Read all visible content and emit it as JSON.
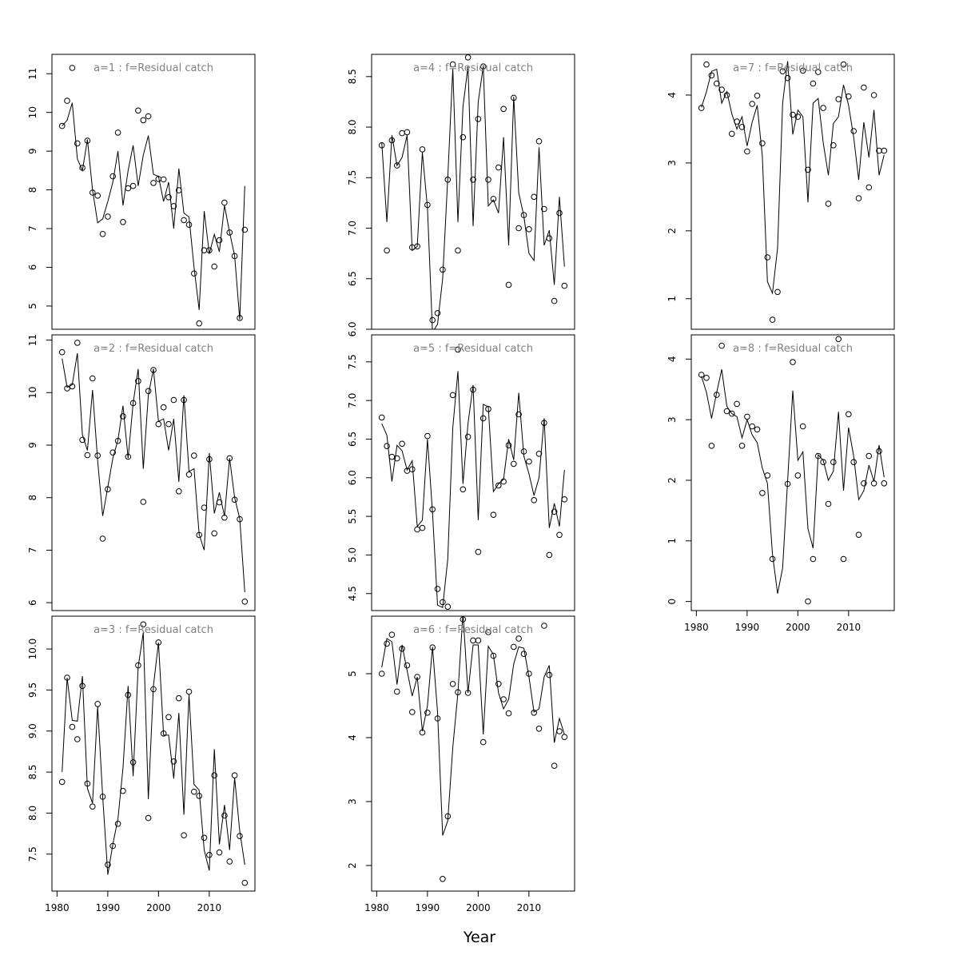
{
  "chart_data": {
    "type": "scatter",
    "title_template": "a={age}  :  f=Residual catch",
    "xlabel": "Year",
    "x_ticks": [
      1980,
      1990,
      2000,
      2010
    ],
    "xlim": [
      1979,
      2019
    ],
    "layout": "3 columns; ages 1-3 in left column, 4-6 in middle column, 7-8 in right column; x-axis tick labels only on bottom panel of each column",
    "series_description": "open circles = observed values; solid line = fitted values",
    "panels": [
      {
        "age": 1,
        "title": "a=1  :  f=Residual catch",
        "ylim": [
          4.4,
          11.5
        ],
        "y_ticks": [
          5,
          6,
          7,
          8,
          9,
          10,
          11
        ],
        "years": [
          1981,
          1982,
          1983,
          1984,
          1985,
          1986,
          1987,
          1988,
          1989,
          1990,
          1991,
          1992,
          1993,
          1994,
          1995,
          1996,
          1997,
          1998,
          1999,
          2000,
          2001,
          2002,
          2003,
          2004,
          2005,
          2006,
          2007,
          2008,
          2009,
          2010,
          2011,
          2012,
          2013,
          2014,
          2015,
          2016,
          2017
        ],
        "observed": [
          9.65,
          10.3,
          11.15,
          9.2,
          8.57,
          9.27,
          7.93,
          7.85,
          6.86,
          7.31,
          8.35,
          9.48,
          7.17,
          8.04,
          8.1,
          10.05,
          9.8,
          9.9,
          8.18,
          8.28,
          8.27,
          7.81,
          7.58,
          7.99,
          7.22,
          7.1,
          5.84,
          4.55,
          6.44,
          6.44,
          6.02,
          6.7,
          7.67,
          6.9,
          6.29,
          4.69,
          6.97
        ],
        "fitted": [
          9.65,
          9.8,
          10.25,
          8.8,
          8.5,
          9.3,
          8.0,
          7.15,
          7.25,
          7.7,
          8.2,
          9.0,
          7.6,
          8.5,
          9.15,
          8.1,
          8.9,
          9.4,
          8.4,
          8.35,
          7.7,
          8.2,
          7.0,
          8.55,
          7.4,
          7.3,
          6.0,
          4.9,
          7.45,
          6.35,
          6.85,
          6.4,
          7.6,
          6.9,
          6.3,
          4.65,
          8.1
        ]
      },
      {
        "age": 2,
        "title": "a=2  :  f=Residual catch",
        "ylim": [
          5.85,
          11.1
        ],
        "y_ticks": [
          6,
          7,
          8,
          9,
          10,
          11
        ],
        "years": [
          1981,
          1982,
          1983,
          1984,
          1985,
          1986,
          1987,
          1988,
          1989,
          1990,
          1991,
          1992,
          1993,
          1994,
          1995,
          1996,
          1997,
          1998,
          1999,
          2000,
          2001,
          2002,
          2003,
          2004,
          2005,
          2006,
          2007,
          2008,
          2009,
          2010,
          2011,
          2012,
          2013,
          2014,
          2015,
          2016,
          2017
        ],
        "observed": [
          10.77,
          10.08,
          10.12,
          10.95,
          9.1,
          8.81,
          10.27,
          8.8,
          7.22,
          8.16,
          8.86,
          9.08,
          9.55,
          8.78,
          9.8,
          10.22,
          7.92,
          10.03,
          10.43,
          9.4,
          9.72,
          9.4,
          9.86,
          8.12,
          9.86,
          8.44,
          8.8,
          7.29,
          7.81,
          8.73,
          7.32,
          7.91,
          7.62,
          8.75,
          7.96,
          7.59,
          6.02
        ],
        "fitted": [
          10.65,
          10.1,
          10.15,
          10.75,
          9.2,
          8.9,
          10.05,
          8.7,
          7.65,
          8.2,
          8.75,
          9.1,
          9.75,
          8.75,
          9.8,
          10.45,
          8.55,
          9.95,
          10.45,
          9.45,
          9.5,
          8.9,
          9.5,
          8.3,
          9.95,
          8.5,
          8.55,
          7.3,
          7.0,
          8.85,
          7.7,
          8.1,
          7.65,
          8.75,
          8.0,
          7.6,
          6.2
        ]
      },
      {
        "age": 3,
        "title": "a=3  :  f=Residual catch",
        "ylim": [
          7.05,
          10.4
        ],
        "y_ticks": [
          7.5,
          8.0,
          8.5,
          9.0,
          9.5,
          10.0
        ],
        "years": [
          1981,
          1982,
          1983,
          1984,
          1985,
          1986,
          1987,
          1988,
          1989,
          1990,
          1991,
          1992,
          1993,
          1994,
          1995,
          1996,
          1997,
          1998,
          1999,
          2000,
          2001,
          2002,
          2003,
          2004,
          2005,
          2006,
          2007,
          2008,
          2009,
          2010,
          2011,
          2012,
          2013,
          2014,
          2015,
          2016,
          2017
        ],
        "observed": [
          8.38,
          9.65,
          9.05,
          8.9,
          9.55,
          8.36,
          8.08,
          9.33,
          8.2,
          7.37,
          7.6,
          7.87,
          8.27,
          9.44,
          8.62,
          9.8,
          10.3,
          7.94,
          9.51,
          10.08,
          8.97,
          9.17,
          8.63,
          9.4,
          7.73,
          9.48,
          8.26,
          8.21,
          7.7,
          7.49,
          8.46,
          7.52,
          7.97,
          7.41,
          8.46,
          7.72,
          7.15
        ],
        "fitted": [
          8.5,
          9.65,
          9.13,
          9.12,
          9.67,
          8.3,
          8.12,
          9.3,
          8.2,
          7.25,
          7.62,
          7.93,
          8.55,
          9.55,
          8.45,
          9.78,
          10.2,
          8.17,
          9.55,
          10.08,
          8.95,
          8.95,
          8.42,
          9.22,
          7.98,
          9.45,
          8.35,
          8.28,
          7.55,
          7.3,
          8.78,
          7.62,
          8.1,
          7.55,
          8.43,
          7.78,
          7.37
        ]
      },
      {
        "age": 4,
        "title": "a=4  :  f=Residual catch",
        "ylim": [
          6.0,
          8.72
        ],
        "y_ticks": [
          6.0,
          6.5,
          7.0,
          7.5,
          8.0,
          8.5
        ],
        "years": [
          1981,
          1982,
          1983,
          1984,
          1985,
          1986,
          1987,
          1988,
          1989,
          1990,
          1991,
          1992,
          1993,
          1994,
          1995,
          1996,
          1997,
          1998,
          1999,
          2000,
          2001,
          2002,
          2003,
          2004,
          2005,
          2006,
          2007,
          2008,
          2009,
          2010,
          2011,
          2012,
          2013,
          2014,
          2015,
          2016,
          2017
        ],
        "observed": [
          7.82,
          6.78,
          7.87,
          7.62,
          7.94,
          7.95,
          6.81,
          6.82,
          7.78,
          7.23,
          6.09,
          6.16,
          6.59,
          7.48,
          8.62,
          6.78,
          7.9,
          8.69,
          7.48,
          8.08,
          8.6,
          7.48,
          7.29,
          7.6,
          8.18,
          6.44,
          8.29,
          7.0,
          7.13,
          6.99,
          7.31,
          7.86,
          7.19,
          6.9,
          6.28,
          7.15,
          6.43
        ],
        "fitted": [
          7.85,
          7.06,
          7.92,
          7.62,
          7.7,
          7.92,
          6.78,
          6.82,
          7.75,
          7.2,
          5.97,
          6.05,
          6.5,
          7.5,
          8.58,
          7.06,
          8.2,
          8.6,
          7.02,
          8.25,
          8.6,
          7.22,
          7.28,
          7.15,
          7.9,
          6.83,
          8.3,
          7.35,
          7.12,
          6.75,
          6.68,
          7.8,
          6.83,
          6.98,
          6.44,
          7.31,
          6.62
        ]
      },
      {
        "age": 5,
        "title": "a=5  :  f=Residual catch",
        "ylim": [
          4.28,
          7.85
        ],
        "y_ticks": [
          4.5,
          5.0,
          5.5,
          6.0,
          6.5,
          7.0,
          7.5
        ],
        "years": [
          1981,
          1982,
          1983,
          1984,
          1985,
          1986,
          1987,
          1988,
          1989,
          1990,
          1991,
          1992,
          1993,
          1994,
          1995,
          1996,
          1997,
          1998,
          1999,
          2000,
          2001,
          2002,
          2003,
          2004,
          2005,
          2006,
          2007,
          2008,
          2009,
          2010,
          2011,
          2012,
          2013,
          2014,
          2015,
          2016,
          2017
        ],
        "observed": [
          6.78,
          6.41,
          6.27,
          6.25,
          6.44,
          6.09,
          6.11,
          5.33,
          5.35,
          6.54,
          5.59,
          4.56,
          4.39,
          4.33,
          7.07,
          7.66,
          5.85,
          6.53,
          7.14,
          5.04,
          6.77,
          6.89,
          5.52,
          5.9,
          5.95,
          6.42,
          6.18,
          6.82,
          6.34,
          6.21,
          5.71,
          6.31,
          6.71,
          5.0,
          5.56,
          5.26,
          5.72
        ],
        "fitted": [
          6.7,
          6.55,
          5.95,
          6.42,
          6.35,
          6.1,
          6.22,
          5.37,
          5.45,
          6.5,
          5.55,
          4.35,
          4.32,
          4.95,
          6.65,
          7.38,
          5.92,
          6.7,
          7.2,
          5.45,
          6.95,
          6.92,
          5.82,
          5.92,
          5.98,
          6.5,
          6.23,
          7.1,
          6.28,
          6.05,
          5.77,
          6.0,
          6.77,
          5.35,
          5.67,
          5.37,
          6.1
        ]
      },
      {
        "age": 6,
        "title": "a=6  :  f=Residual catch",
        "ylim": [
          1.6,
          5.9
        ],
        "y_ticks": [
          2,
          3,
          4,
          5
        ],
        "years": [
          1981,
          1982,
          1983,
          1984,
          1985,
          1986,
          1987,
          1988,
          1989,
          1990,
          1991,
          1992,
          1993,
          1994,
          1995,
          1996,
          1997,
          1998,
          1999,
          2000,
          2001,
          2002,
          2003,
          2004,
          2005,
          2006,
          2007,
          2008,
          2009,
          2010,
          2011,
          2012,
          2013,
          2014,
          2015,
          2016,
          2017
        ],
        "observed": [
          5.0,
          5.47,
          5.61,
          4.72,
          5.39,
          5.13,
          4.4,
          4.95,
          4.08,
          4.39,
          5.41,
          4.3,
          1.79,
          2.77,
          4.84,
          4.71,
          5.85,
          4.7,
          5.52,
          5.52,
          3.93,
          5.65,
          5.28,
          4.84,
          4.6,
          4.38,
          5.42,
          5.55,
          5.31,
          5.0,
          4.39,
          4.14,
          5.75,
          4.98,
          3.56,
          4.1,
          4.01
        ],
        "fitted": [
          5.1,
          5.55,
          5.5,
          4.83,
          5.45,
          5.05,
          4.65,
          4.95,
          4.1,
          4.5,
          5.42,
          4.4,
          2.47,
          2.7,
          3.85,
          4.7,
          5.95,
          4.7,
          5.45,
          5.45,
          4.05,
          5.43,
          5.3,
          4.7,
          4.45,
          4.6,
          5.15,
          5.42,
          5.4,
          4.95,
          4.4,
          4.45,
          4.95,
          5.13,
          3.92,
          4.3,
          4.05
        ]
      },
      {
        "age": 7,
        "title": "a=7  :  f=Residual catch",
        "ylim": [
          0.55,
          4.6
        ],
        "y_ticks": [
          1,
          2,
          3,
          4
        ],
        "years": [
          1981,
          1982,
          1983,
          1984,
          1985,
          1986,
          1987,
          1988,
          1989,
          1990,
          1991,
          1992,
          1993,
          1994,
          1995,
          1996,
          1997,
          1998,
          1999,
          2000,
          2001,
          2002,
          2003,
          2004,
          2005,
          2006,
          2007,
          2008,
          2009,
          2010,
          2011,
          2012,
          2013,
          2014,
          2015,
          2016,
          2017
        ],
        "observed": [
          3.81,
          4.45,
          4.29,
          4.17,
          4.08,
          4.0,
          3.43,
          3.61,
          3.53,
          3.17,
          3.87,
          3.99,
          3.29,
          1.61,
          0.69,
          1.1,
          4.35,
          4.25,
          3.71,
          3.68,
          4.36,
          2.9,
          4.17,
          4.34,
          3.81,
          2.4,
          3.26,
          3.94,
          4.45,
          3.98,
          3.47,
          2.48,
          4.11,
          2.64,
          4.0,
          3.18,
          3.18
        ],
        "fitted": [
          3.82,
          4.05,
          4.35,
          4.38,
          3.88,
          4.05,
          3.72,
          3.5,
          3.68,
          3.25,
          3.6,
          3.85,
          3.1,
          1.25,
          1.08,
          1.75,
          3.88,
          4.5,
          3.42,
          3.78,
          3.68,
          2.42,
          3.88,
          3.95,
          3.3,
          2.82,
          3.58,
          3.68,
          4.15,
          3.85,
          3.38,
          2.75,
          3.6,
          3.08,
          3.78,
          2.82,
          3.12
        ]
      },
      {
        "age": 8,
        "title": "a=8  :  f=Residual catch",
        "ylim": [
          -0.15,
          4.4
        ],
        "y_ticks": [
          0,
          1,
          2,
          3,
          4
        ],
        "years": [
          1981,
          1982,
          1983,
          1984,
          1985,
          1986,
          1987,
          1988,
          1989,
          1990,
          1991,
          1992,
          1993,
          1994,
          1995,
          1996,
          1997,
          1998,
          1999,
          2000,
          2001,
          2002,
          2003,
          2004,
          2005,
          2006,
          2007,
          2008,
          2009,
          2010,
          2011,
          2012,
          2013,
          2014,
          2015,
          2016,
          2017
        ],
        "observed": [
          3.74,
          3.69,
          2.57,
          3.41,
          4.22,
          3.14,
          3.1,
          3.26,
          2.57,
          3.05,
          2.89,
          2.84,
          1.79,
          2.08,
          0.7,
          null,
          null,
          1.94,
          3.95,
          2.08,
          2.89,
          0.0,
          0.7,
          2.4,
          2.3,
          1.61,
          2.3,
          4.33,
          0.7,
          3.09,
          2.3,
          1.1,
          1.95,
          2.4,
          1.95,
          2.48,
          1.95
        ],
        "fitted": [
          3.72,
          3.45,
          3.02,
          3.45,
          3.83,
          3.22,
          3.1,
          3.05,
          2.7,
          3.0,
          2.75,
          2.62,
          2.2,
          1.95,
          0.78,
          0.13,
          0.55,
          2.0,
          3.48,
          2.33,
          2.47,
          1.2,
          0.88,
          2.42,
          2.33,
          2.0,
          2.15,
          3.13,
          1.83,
          2.87,
          2.4,
          1.68,
          1.83,
          2.25,
          1.98,
          2.58,
          2.05
        ]
      }
    ]
  }
}
